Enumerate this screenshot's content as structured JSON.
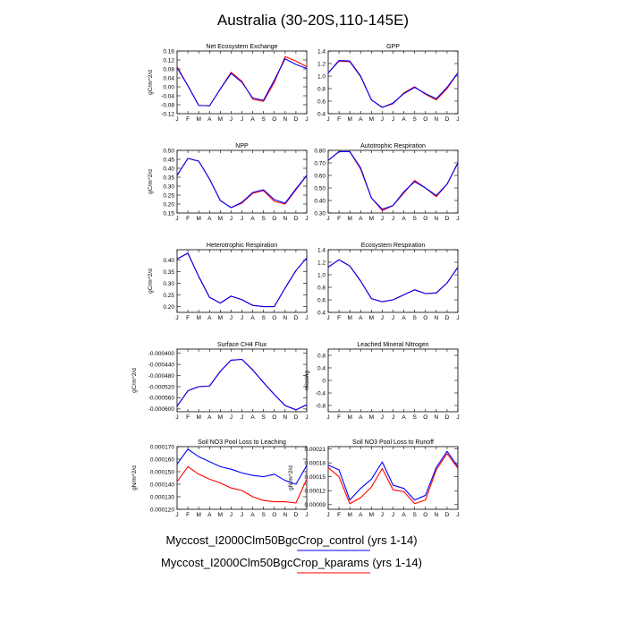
{
  "figure": {
    "title": "Australia (30-20S,110-145E)",
    "months": [
      "J",
      "F",
      "M",
      "A",
      "M",
      "J",
      "J",
      "A",
      "S",
      "O",
      "N",
      "D",
      "J"
    ],
    "colors": {
      "control": "#0000ff",
      "kparams": "#ff0000"
    }
  },
  "legend": [
    {
      "name": "Myccost_I2000Clm50BgcCrop_control (yrs 1-14)",
      "color": "#0000ff"
    },
    {
      "name": "Myccost_I2000Clm50BgcCrop_kparams (yrs 1-14)",
      "color": "#ff0000"
    }
  ],
  "chart_data": [
    {
      "type": "line",
      "title": "Net Ecosystem Exchange",
      "ylabel": "gC/m^2/d",
      "ylim": [
        -0.12,
        0.16
      ],
      "yticks": [
        "-0.12",
        "-0.08",
        "-0.04",
        "0.00",
        "0.04",
        "0.08",
        "0.12",
        "0.16"
      ],
      "ytick_values": [
        -0.12,
        -0.08,
        -0.04,
        0,
        0.04,
        0.08,
        0.12,
        0.16
      ],
      "series": [
        {
          "values": [
            0.085,
            0.005,
            -0.083,
            -0.085,
            -0.01,
            0.06,
            0.02,
            -0.05,
            -0.06,
            0.03,
            0.125,
            0.1,
            0.082
          ]
        },
        {
          "values": [
            0.09,
            0.005,
            -0.083,
            -0.085,
            -0.01,
            0.065,
            0.025,
            -0.055,
            -0.065,
            0.02,
            0.135,
            0.115,
            0.09
          ]
        }
      ]
    },
    {
      "type": "line",
      "title": "GPP",
      "ylabel": "",
      "ylim": [
        0.4,
        1.4
      ],
      "yticks": [
        "0.4",
        "0.6",
        "0.8",
        "1.0",
        "1.2",
        "1.4"
      ],
      "ytick_values": [
        0.4,
        0.6,
        0.8,
        1.0,
        1.2,
        1.4
      ],
      "series": [
        {
          "values": [
            1.05,
            1.25,
            1.24,
            1.0,
            0.62,
            0.5,
            0.57,
            0.72,
            0.82,
            0.72,
            0.64,
            0.82,
            1.05
          ]
        },
        {
          "values": [
            1.05,
            1.24,
            1.23,
            0.99,
            0.62,
            0.5,
            0.56,
            0.73,
            0.83,
            0.71,
            0.62,
            0.8,
            1.05
          ]
        }
      ]
    },
    {
      "type": "line",
      "title": "NPP",
      "ylabel": "gC/m^2/d",
      "ylim": [
        0.15,
        0.5
      ],
      "yticks": [
        "0.15",
        "0.20",
        "0.25",
        "0.30",
        "0.35",
        "0.40",
        "0.45",
        "0.50"
      ],
      "ytick_values": [
        0.15,
        0.2,
        0.25,
        0.3,
        0.35,
        0.4,
        0.45,
        0.5
      ],
      "series": [
        {
          "values": [
            0.36,
            0.455,
            0.44,
            0.34,
            0.22,
            0.18,
            0.21,
            0.265,
            0.28,
            0.225,
            0.205,
            0.285,
            0.36
          ]
        },
        {
          "values": [
            0.36,
            0.455,
            0.44,
            0.34,
            0.22,
            0.18,
            0.205,
            0.26,
            0.275,
            0.215,
            0.2,
            0.28,
            0.36
          ]
        }
      ]
    },
    {
      "type": "line",
      "title": "Autotrophic Respiration",
      "ylabel": "",
      "ylim": [
        0.3,
        0.8
      ],
      "yticks": [
        "0.30",
        "0.40",
        "0.50",
        "0.60",
        "0.70",
        "0.80"
      ],
      "ytick_values": [
        0.3,
        0.4,
        0.5,
        0.6,
        0.7,
        0.8
      ],
      "series": [
        {
          "values": [
            0.72,
            0.79,
            0.79,
            0.66,
            0.42,
            0.33,
            0.36,
            0.47,
            0.55,
            0.5,
            0.44,
            0.53,
            0.7
          ]
        },
        {
          "values": [
            0.72,
            0.79,
            0.79,
            0.65,
            0.42,
            0.32,
            0.36,
            0.46,
            0.56,
            0.5,
            0.43,
            0.53,
            0.7
          ]
        }
      ]
    },
    {
      "type": "line",
      "title": "Heterotrophic Respiration",
      "ylabel": "gC/m^2/d",
      "ylim": [
        0.175,
        0.445
      ],
      "yticks": [
        "0.20",
        "0.25",
        "0.30",
        "0.35",
        "0.40"
      ],
      "ytick_values": [
        0.2,
        0.25,
        0.3,
        0.35,
        0.4
      ],
      "series": [
        {
          "values": [
            0.405,
            0.43,
            0.33,
            0.24,
            0.215,
            0.245,
            0.23,
            0.205,
            0.2,
            0.2,
            0.28,
            0.355,
            0.41
          ]
        },
        {
          "values": [
            0.405,
            0.43,
            0.33,
            0.24,
            0.215,
            0.245,
            0.23,
            0.205,
            0.2,
            0.2,
            0.28,
            0.355,
            0.41
          ]
        }
      ]
    },
    {
      "type": "line",
      "title": "Ecosystem Respiration",
      "ylabel": "",
      "ylim": [
        0.4,
        1.4
      ],
      "yticks": [
        "0.4",
        "0.6",
        "0.8",
        "1.0",
        "1.2",
        "1.4"
      ],
      "ytick_values": [
        0.4,
        0.6,
        0.8,
        1.0,
        1.2,
        1.4
      ],
      "series": [
        {
          "values": [
            1.12,
            1.24,
            1.14,
            0.9,
            0.62,
            0.57,
            0.6,
            0.68,
            0.76,
            0.7,
            0.71,
            0.87,
            1.12
          ]
        },
        {
          "values": [
            1.12,
            1.24,
            1.14,
            0.9,
            0.62,
            0.57,
            0.6,
            0.68,
            0.76,
            0.7,
            0.71,
            0.87,
            1.12
          ]
        }
      ]
    },
    {
      "type": "line",
      "title": "Surface CH4 Flux",
      "ylabel": "gC/m^2/d",
      "ylim": [
        -0.00061,
        -0.000385
      ],
      "yticks": [
        "-0.000600",
        "-0.000560",
        "-0.000520",
        "-0.000480",
        "-0.000440",
        "-0.000400"
      ],
      "ytick_values": [
        -0.0006,
        -0.00056,
        -0.00052,
        -0.00048,
        -0.00044,
        -0.0004
      ],
      "series": [
        {
          "values": [
            -0.00059,
            -0.000535,
            -0.00052,
            -0.000518,
            -0.000465,
            -0.000425,
            -0.000422,
            -0.00046,
            -0.000505,
            -0.000548,
            -0.000588,
            -0.000603,
            -0.000585
          ]
        },
        {
          "values": [
            -0.00059,
            -0.000535,
            -0.00052,
            -0.000518,
            -0.000465,
            -0.000425,
            -0.000422,
            -0.00046,
            -0.000505,
            -0.000548,
            -0.000588,
            -0.000603,
            -0.000585
          ]
        }
      ]
    },
    {
      "type": "line",
      "title": "Leached Mineral Nitrogen",
      "ylabel": "missing",
      "ylim": [
        -1.0,
        1.0
      ],
      "yticks": [
        "-0.8",
        "-0.4",
        "0",
        "0.4",
        "0.8"
      ],
      "ytick_values": [
        -0.8,
        -0.4,
        0,
        0.4,
        0.8
      ],
      "series": []
    },
    {
      "type": "line",
      "title": "Soil NO3 Pool Loss to Leaching",
      "ylabel": "gN/m^2/d",
      "ylim": [
        0.00012,
        0.00017
      ],
      "yticks": [
        "0.000120",
        "0.000130",
        "0.000140",
        "0.000150",
        "0.000160",
        "0.000170"
      ],
      "ytick_values": [
        0.00012,
        0.00013,
        0.00014,
        0.00015,
        0.00016,
        0.00017
      ],
      "series": [
        {
          "values": [
            0.000156,
            0.000168,
            0.000162,
            0.000158,
            0.000154,
            0.000152,
            0.000149,
            0.000147,
            0.000146,
            0.000148,
            0.000143,
            0.00014,
            0.000155
          ]
        },
        {
          "values": [
            0.000142,
            0.000154,
            0.000148,
            0.000144,
            0.000141,
            0.000137,
            0.000135,
            0.00013,
            0.000127,
            0.000126,
            0.000126,
            0.000125,
            0.000144
          ]
        }
      ]
    },
    {
      "type": "line",
      "title": "Soil NO3 Pool Loss to Runoff",
      "ylabel": "gN/m^2/d",
      "ylim": [
        8e-05,
        0.000215
      ],
      "yticks": [
        "0.00009",
        "0.00012",
        "0.00015",
        "0.00018",
        "0.00021"
      ],
      "ytick_values": [
        9e-05,
        0.00012,
        0.00015,
        0.00018,
        0.00021
      ],
      "series": [
        {
          "values": [
            0.000175,
            0.000165,
            0.0001,
            0.000125,
            0.000145,
            0.000182,
            0.000132,
            0.000125,
            0.0001,
            0.00011,
            0.00017,
            0.000205,
            0.000172
          ]
        },
        {
          "values": [
            0.00017,
            0.00015,
            9.2e-05,
            0.000105,
            0.000128,
            0.000168,
            0.000122,
            0.000118,
            9.2e-05,
            0.0001,
            0.000165,
            0.0002,
            0.000168
          ]
        }
      ]
    }
  ]
}
